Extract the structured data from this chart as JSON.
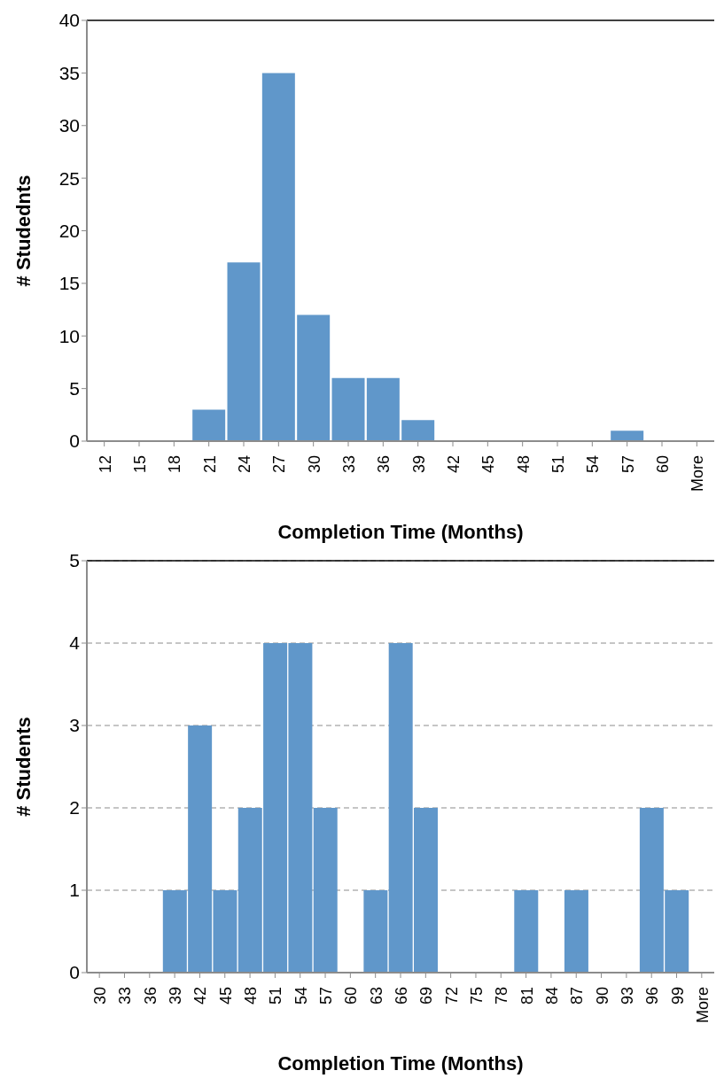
{
  "chart_data": [
    {
      "type": "bar",
      "xlabel": "Completion Time (Months)",
      "ylabel": "# Studednts",
      "categories": [
        "12",
        "15",
        "18",
        "21",
        "24",
        "27",
        "30",
        "33",
        "36",
        "39",
        "42",
        "45",
        "48",
        "51",
        "54",
        "57",
        "60",
        "More"
      ],
      "values": [
        0,
        0,
        0,
        3,
        17,
        35,
        12,
        6,
        6,
        2,
        0,
        0,
        0,
        0,
        0,
        1,
        0,
        0
      ],
      "color": "#6097ca",
      "ylim": [
        0,
        40
      ],
      "yticks": [
        0,
        5,
        10,
        15,
        20,
        25,
        30,
        35,
        40
      ],
      "grid": false,
      "legend": false
    },
    {
      "type": "bar",
      "xlabel": "Completion Time (Months)",
      "ylabel": "# Students",
      "categories": [
        "30",
        "33",
        "36",
        "39",
        "42",
        "45",
        "48",
        "51",
        "54",
        "57",
        "60",
        "63",
        "66",
        "69",
        "72",
        "75",
        "78",
        "81",
        "84",
        "87",
        "90",
        "93",
        "96",
        "99",
        "More"
      ],
      "values": [
        0,
        0,
        0,
        1,
        3,
        1,
        2,
        4,
        4,
        2,
        0,
        1,
        4,
        2,
        0,
        0,
        0,
        1,
        0,
        1,
        0,
        0,
        2,
        1,
        0
      ],
      "color": "#6097ca",
      "ylim": [
        0,
        5
      ],
      "yticks": [
        0,
        1,
        2,
        3,
        4,
        5
      ],
      "grid": "y",
      "legend": false
    }
  ]
}
